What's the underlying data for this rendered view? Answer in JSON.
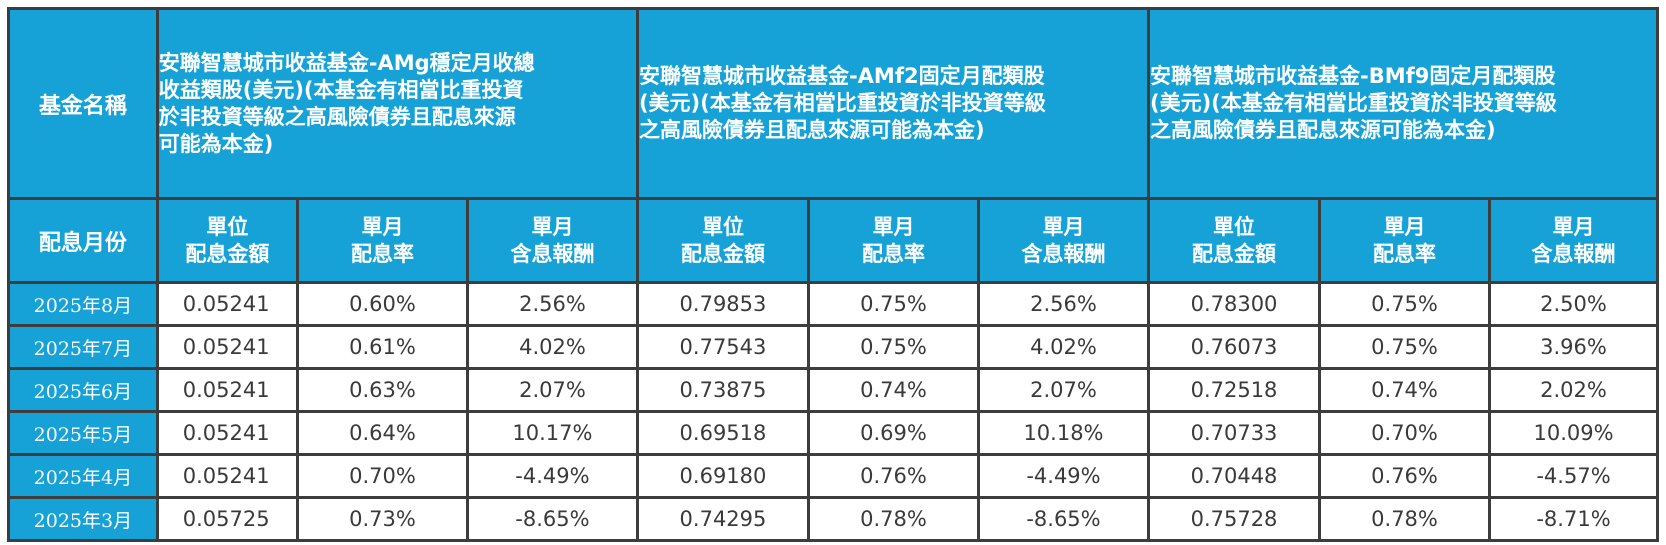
{
  "table": {
    "row_header_fund": "基金名稱",
    "row_header_month": "配息月份",
    "funds": [
      {
        "name_lines": [
          "安聯智慧城市收益基金-AMg穩定月收總",
          "收益類股(美元)(本基金有相當比重投資",
          "於非投資等級之高風險債券且配息來源",
          "可能為本金)"
        ]
      },
      {
        "name_lines": [
          "安聯智慧城市收益基金-AMf2固定月配類股",
          "(美元)(本基金有相當比重投資於非投資等級",
          "之高風險債券且配息來源可能為本金)"
        ]
      },
      {
        "name_lines": [
          "安聯智慧城市收益基金-BMf9固定月配類股",
          "(美元)(本基金有相當比重投資於非投資等級",
          "之高風險債券且配息來源可能為本金)"
        ]
      }
    ],
    "sub_headers": [
      [
        "單位",
        "配息金額"
      ],
      [
        "單月",
        "配息率"
      ],
      [
        "單月",
        "含息報酬"
      ]
    ],
    "rows": [
      {
        "month": "2025年8月",
        "values": [
          "0.05241",
          "0.60%",
          "2.56%",
          "0.79853",
          "0.75%",
          "2.56%",
          "0.78300",
          "0.75%",
          "2.50%"
        ]
      },
      {
        "month": "2025年7月",
        "values": [
          "0.05241",
          "0.61%",
          "4.02%",
          "0.77543",
          "0.75%",
          "4.02%",
          "0.76073",
          "0.75%",
          "3.96%"
        ]
      },
      {
        "month": "2025年6月",
        "values": [
          "0.05241",
          "0.63%",
          "2.07%",
          "0.73875",
          "0.74%",
          "2.07%",
          "0.72518",
          "0.74%",
          "2.02%"
        ]
      },
      {
        "month": "2025年5月",
        "values": [
          "0.05241",
          "0.64%",
          "10.17%",
          "0.69518",
          "0.69%",
          "10.18%",
          "0.70733",
          "0.70%",
          "10.09%"
        ]
      },
      {
        "month": "2025年4月",
        "values": [
          "0.05241",
          "0.70%",
          "-4.49%",
          "0.69180",
          "0.76%",
          "-4.49%",
          "0.70448",
          "0.76%",
          "-4.57%"
        ]
      },
      {
        "month": "2025年3月",
        "values": [
          "0.05725",
          "0.73%",
          "-8.65%",
          "0.74295",
          "0.78%",
          "-8.65%",
          "0.75728",
          "0.78%",
          "-8.71%"
        ]
      }
    ]
  },
  "colors": {
    "header_bg": "#16a2d6",
    "border": "#3d3d3d",
    "cell_text": "#3a3a3a"
  }
}
